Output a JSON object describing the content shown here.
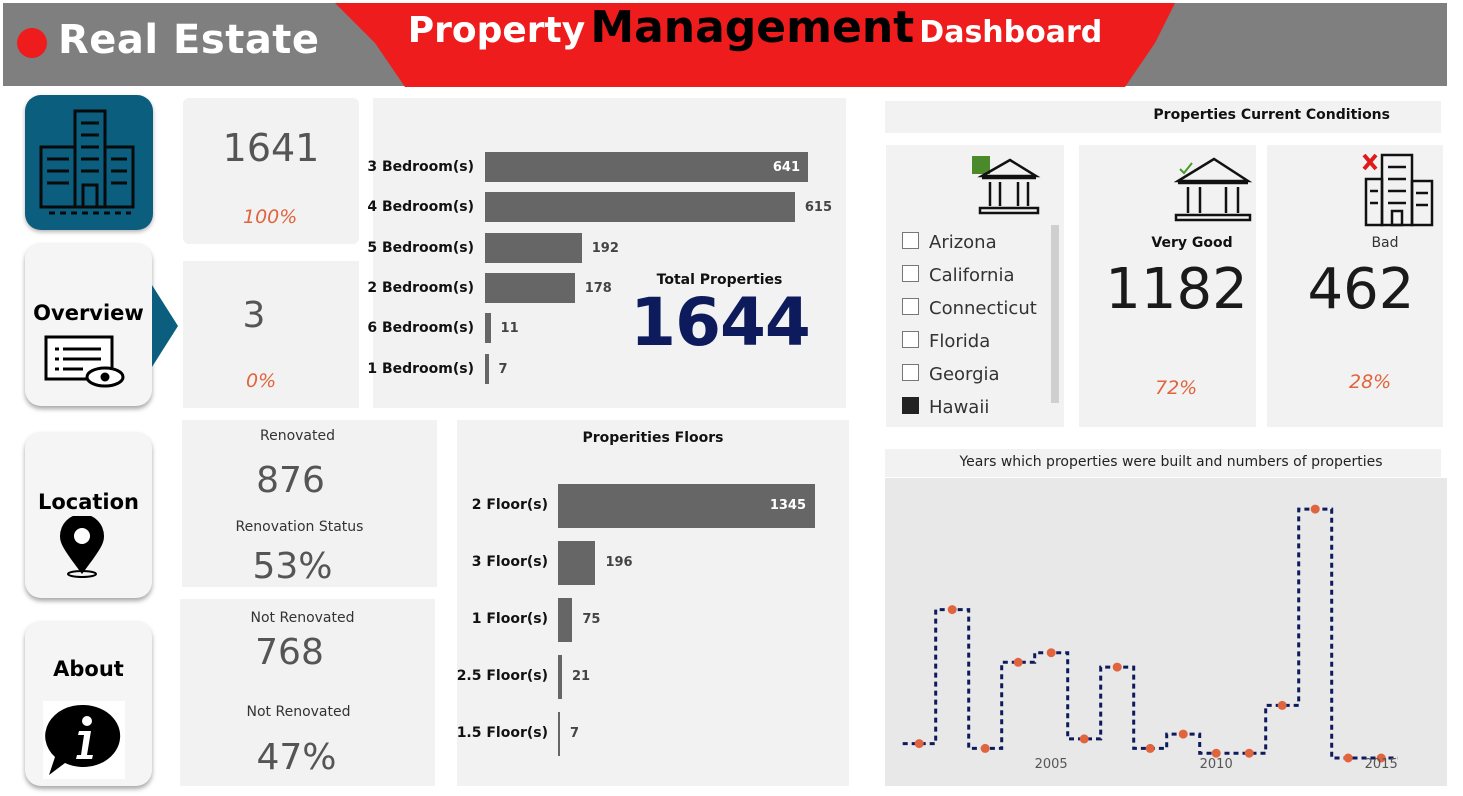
{
  "header": {
    "brand": "Real Estate",
    "title_part1": "Property",
    "title_part2": "Management",
    "title_part3": "Dashboard"
  },
  "nav": {
    "items": [
      {
        "label": ""
      },
      {
        "label": "Overview"
      },
      {
        "label": "Location"
      },
      {
        "label": "About"
      }
    ]
  },
  "kpi_total": {
    "value": "1641",
    "pct": "100%"
  },
  "kpi_small": {
    "value": "3",
    "pct": "0%"
  },
  "renovated": {
    "title": "Renovated",
    "value": "876",
    "subtitle": "Renovation Status",
    "pct": "53%"
  },
  "not_renovated": {
    "title": "Not Renovated",
    "value": "768",
    "subtitle": "Not Renovated",
    "pct": "47%"
  },
  "bedrooms": {
    "labels": [
      "3 Bedroom(s)",
      "4 Bedroom(s)",
      "5 Bedroom(s)",
      "2 Bedroom(s)",
      "6 Bedroom(s)",
      "1 Bedroom(s)"
    ],
    "values": [
      641,
      615,
      192,
      178,
      11,
      7
    ],
    "total_label": "Total Properties",
    "total_value": "1644"
  },
  "floors": {
    "title": "Properities Floors",
    "labels": [
      "2 Floor(s)",
      "3 Floor(s)",
      "1 Floor(s)",
      "2.5 Floor(s)",
      "1.5 Floor(s)"
    ],
    "values": [
      1345,
      196,
      75,
      21,
      7
    ]
  },
  "conditions": {
    "title": "Properties Current Conditions",
    "very_good_label": "Very Good",
    "very_good_value": "1182",
    "very_good_pct": "72%",
    "bad_label": "Bad",
    "bad_value": "462",
    "bad_pct": "28%"
  },
  "states": {
    "items": [
      {
        "label": "Arizona",
        "checked": false
      },
      {
        "label": "California",
        "checked": false
      },
      {
        "label": "Connecticut",
        "checked": false
      },
      {
        "label": "Florida",
        "checked": false
      },
      {
        "label": "Georgia",
        "checked": false
      },
      {
        "label": "Hawaii",
        "checked": true
      }
    ]
  },
  "years_chart": {
    "title": "Years which properties were built and numbers of properties",
    "ticks": [
      "2005",
      "2010",
      "2015"
    ]
  },
  "colors": {
    "header_gray": "#7f7f7f",
    "banner_red": "#ee1c1c",
    "bar_gray": "#666666",
    "accent_orange": "#e0643d",
    "total_navy": "#0d1a5c",
    "nav_teal": "#0b5e7e"
  },
  "chart_data": {
    "type": "line",
    "title": "Years which properties were built and numbers of properties",
    "xlabel": "",
    "ylabel": "",
    "x": [
      2001,
      2002,
      2003,
      2004,
      2005,
      2006,
      2007,
      2008,
      2009,
      2010,
      2011,
      2012,
      2013,
      2014,
      2015
    ],
    "series": [
      {
        "values": [
          3,
          31,
          2,
          20,
          22,
          4,
          19,
          2,
          5,
          1,
          1,
          11,
          52,
          0,
          0
        ]
      }
    ],
    "x_ticks": [
      2005,
      2010,
      2015
    ],
    "ylim": [
      0,
      56
    ],
    "grid": false,
    "line_style": "dashed-step",
    "marker_color": "#e0643d",
    "line_color": "#0d1a5c"
  }
}
